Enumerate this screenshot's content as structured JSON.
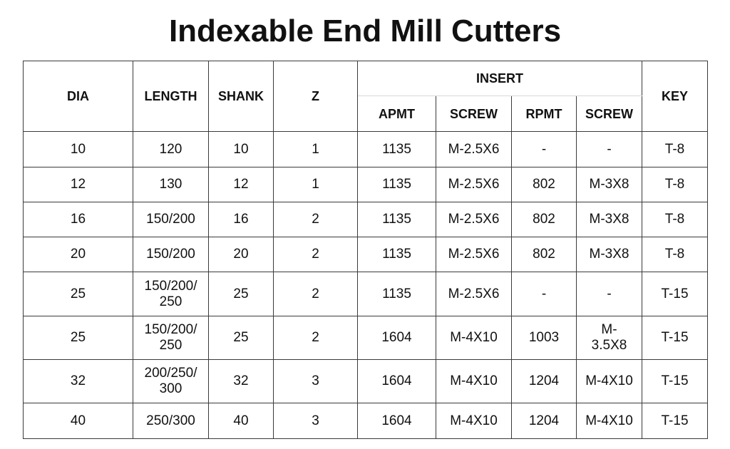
{
  "title": "Indexable End Mill Cutters",
  "table": {
    "header": {
      "dia": "DIA",
      "length": "LENGTH",
      "shank": "SHANK",
      "z": "Z",
      "insert": "INSERT",
      "apmt": "APMT",
      "screw_1": "SCREW",
      "rpmt": "RPMT",
      "screw_2": "SCREW",
      "key": "KEY"
    },
    "rows": [
      [
        "10",
        "120",
        "10",
        "1",
        "1135",
        "M-2.5X6",
        "-",
        "-",
        "T-8"
      ],
      [
        "12",
        "130",
        "12",
        "1",
        "1135",
        "M-2.5X6",
        "802",
        "M-3X8",
        "T-8"
      ],
      [
        "16",
        "150/200",
        "16",
        "2",
        "1135",
        "M-2.5X6",
        "802",
        "M-3X8",
        "T-8"
      ],
      [
        "20",
        "150/200",
        "20",
        "2",
        "1135",
        "M-2.5X6",
        "802",
        "M-3X8",
        "T-8"
      ],
      [
        "25",
        "150/200/\n250",
        "25",
        "2",
        "1135",
        "M-2.5X6",
        "-",
        "-",
        "T-15"
      ],
      [
        "25",
        "150/200/\n250",
        "25",
        "2",
        "1604",
        "M-4X10",
        "1003",
        "M-\n3.5X8",
        "T-15"
      ],
      [
        "32",
        "200/250/\n300",
        "32",
        "3",
        "1604",
        "M-4X10",
        "1204",
        "M-4X10",
        "T-15"
      ],
      [
        "40",
        "250/300",
        "40",
        "3",
        "1604",
        "M-4X10",
        "1204",
        "M-4X10",
        "T-15"
      ]
    ]
  }
}
